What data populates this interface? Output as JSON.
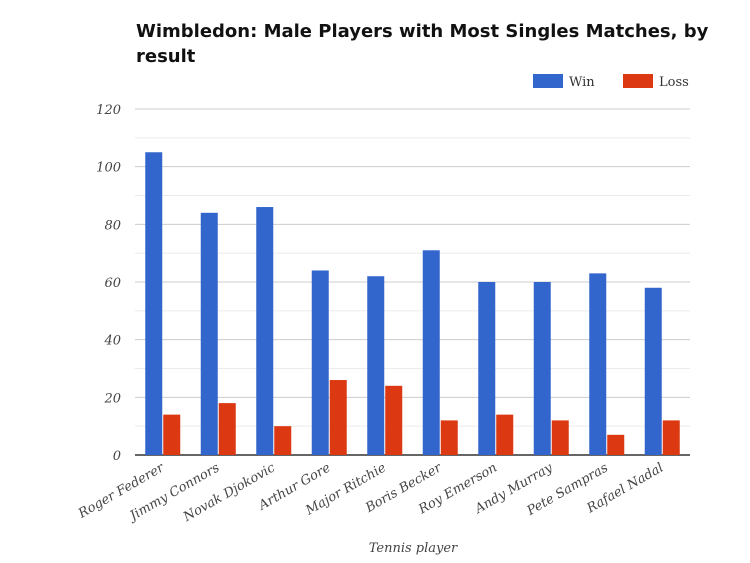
{
  "chart_data": {
    "type": "bar",
    "title_line1": "Wimbledon: Male Players with Most Singles Matches, by",
    "title_line2": "result",
    "xlabel": "Tennis player",
    "ylabel": "",
    "ylim": [
      0,
      120
    ],
    "yticks": [
      "0",
      "20",
      "40",
      "60",
      "80",
      "100",
      "120"
    ],
    "grid": true,
    "legend_position": "top-right",
    "categories": [
      "Roger Federer",
      "Jimmy Connors",
      "Novak Djokovic",
      "Arthur Gore",
      "Major Ritchie",
      "Boris Becker",
      "Roy Emerson",
      "Andy Murray",
      "Pete Sampras",
      "Rafael Nadal"
    ],
    "series": [
      {
        "name": "Win",
        "color": "#3366cc",
        "values": [
          105,
          84,
          86,
          64,
          62,
          71,
          60,
          60,
          63,
          58
        ]
      },
      {
        "name": "Loss",
        "color": "#dc3912",
        "values": [
          14,
          18,
          10,
          26,
          24,
          12,
          14,
          12,
          7,
          12
        ]
      }
    ]
  }
}
